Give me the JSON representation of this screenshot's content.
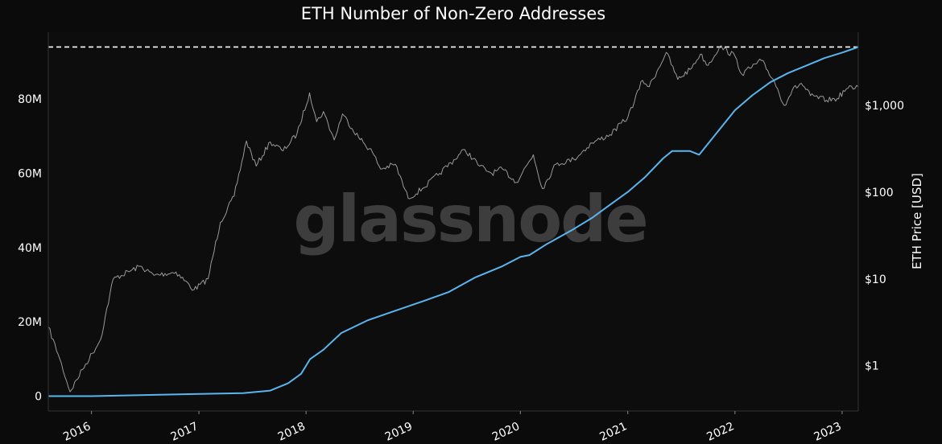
{
  "colors": {
    "background": "#0b0b0b",
    "plot_background": "#0d0d0d",
    "addresses_line": "#5ab4ee",
    "price_line": "#9a9a9a",
    "ath_line": "#ffffff",
    "watermark": "#4a4a4a",
    "text": "#ffffff"
  },
  "watermark_text": "glassnode",
  "chart_data": {
    "type": "line",
    "title": "ETH Number of Non-Zero Addresses",
    "xlabel": "",
    "ylabel_left": "",
    "ylabel_right": "ETH Price [USD]",
    "x_ticks": [
      "2016",
      "2017",
      "2018",
      "2019",
      "2020",
      "2021",
      "2022",
      "2023"
    ],
    "y_left_ticks": [
      "0",
      "20M",
      "40M",
      "60M",
      "80M"
    ],
    "y_left_tick_values": [
      0,
      20000000,
      40000000,
      60000000,
      80000000
    ],
    "y_left_range": [
      -4000000,
      98000000
    ],
    "y_right_scale": "log",
    "y_right_ticks": [
      "$1",
      "$10",
      "$100",
      "$1,000"
    ],
    "y_right_tick_values": [
      1,
      10,
      100,
      1000
    ],
    "y_right_range": [
      0.3,
      7000
    ],
    "x_range": [
      "2015-08-07",
      "2023-02-25"
    ],
    "ath_reference": {
      "style": "dashed",
      "value": 94000000
    },
    "grid": false,
    "legend": "none",
    "series": [
      {
        "axis": "left",
        "x": [
          "2015-08-07",
          "2016-01-01",
          "2016-07-01",
          "2017-01-01",
          "2017-06-01",
          "2017-09-01",
          "2017-11-01",
          "2017-12-15",
          "2018-01-15",
          "2018-03-01",
          "2018-05-01",
          "2018-08-01",
          "2018-11-01",
          "2019-02-01",
          "2019-05-01",
          "2019-08-01",
          "2019-11-01",
          "2020-01-01",
          "2020-02-01",
          "2020-04-01",
          "2020-07-01",
          "2020-09-01",
          "2020-11-01",
          "2021-01-01",
          "2021-03-01",
          "2021-05-01",
          "2021-06-01",
          "2021-08-01",
          "2021-09-01",
          "2021-11-01",
          "2022-01-01",
          "2022-03-01",
          "2022-05-01",
          "2022-07-01",
          "2022-09-01",
          "2022-11-01",
          "2023-01-01",
          "2023-02-25"
        ],
        "values": [
          0,
          0,
          300000,
          600000,
          800000,
          1500000,
          3500000,
          6000000,
          10000000,
          12500000,
          17000000,
          20500000,
          23000000,
          25500000,
          28000000,
          32000000,
          35000000,
          37500000,
          38000000,
          41000000,
          45000000,
          48000000,
          51500000,
          55000000,
          59000000,
          64000000,
          66000000,
          66000000,
          65000000,
          71000000,
          77000000,
          81000000,
          84500000,
          87000000,
          89000000,
          91000000,
          92500000,
          94000000
        ]
      },
      {
        "axis": "right",
        "x": [
          "2015-08-07",
          "2015-09-15",
          "2015-10-20",
          "2015-12-01",
          "2016-02-01",
          "2016-03-15",
          "2016-06-15",
          "2016-08-01",
          "2016-10-15",
          "2016-12-15",
          "2017-02-01",
          "2017-03-15",
          "2017-05-01",
          "2017-06-12",
          "2017-07-15",
          "2017-09-01",
          "2017-10-15",
          "2017-12-01",
          "2018-01-13",
          "2018-02-06",
          "2018-03-01",
          "2018-04-07",
          "2018-05-05",
          "2018-06-29",
          "2018-08-15",
          "2018-09-12",
          "2018-11-01",
          "2018-12-15",
          "2019-02-01",
          "2019-04-01",
          "2019-06-26",
          "2019-08-15",
          "2019-09-25",
          "2019-11-01",
          "2019-12-18",
          "2020-02-14",
          "2020-03-16",
          "2020-05-01",
          "2020-07-01",
          "2020-09-01",
          "2020-11-01",
          "2021-01-01",
          "2021-02-20",
          "2021-03-15",
          "2021-05-12",
          "2021-06-20",
          "2021-08-01",
          "2021-09-05",
          "2021-10-01",
          "2021-11-10",
          "2022-01-01",
          "2022-01-24",
          "2022-04-01",
          "2022-05-15",
          "2022-06-18",
          "2022-07-15",
          "2022-08-15",
          "2022-09-15",
          "2022-11-09",
          "2022-12-15",
          "2023-01-15",
          "2023-02-25"
        ],
        "values": [
          2.8,
          1.2,
          0.5,
          0.9,
          2.0,
          10,
          14,
          11,
          12,
          7.5,
          10,
          45,
          90,
          390,
          200,
          380,
          300,
          470,
          1400,
          650,
          850,
          400,
          800,
          430,
          290,
          185,
          210,
          85,
          110,
          165,
          310,
          200,
          165,
          185,
          130,
          270,
          110,
          210,
          240,
          370,
          460,
          730,
          1950,
          1650,
          4100,
          2000,
          2600,
          3900,
          2900,
          4800,
          3700,
          2300,
          3300,
          1900,
          1000,
          1500,
          1800,
          1300,
          1150,
          1200,
          1550,
          1650
        ]
      }
    ]
  }
}
